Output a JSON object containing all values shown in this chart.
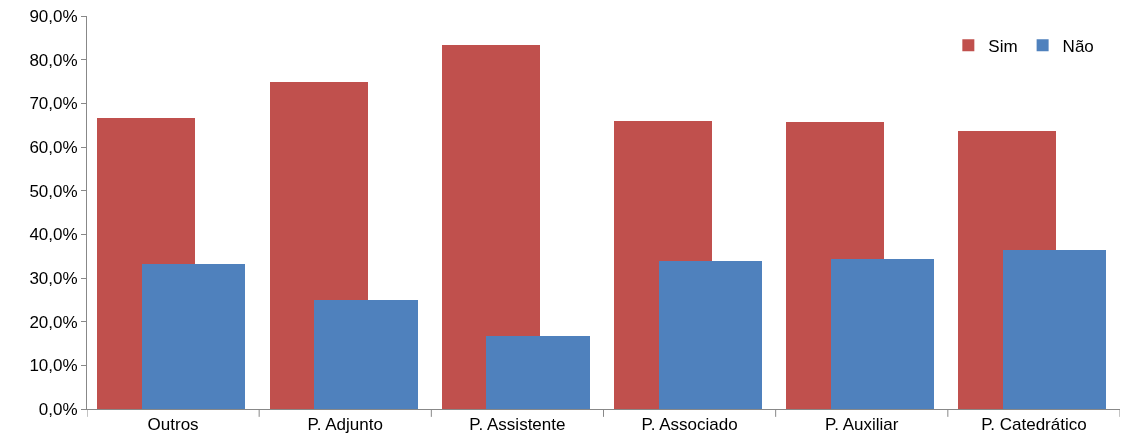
{
  "chart_data": {
    "type": "bar",
    "categories": [
      "Outros",
      "P. Adjunto",
      "P. Assistente",
      "P. Associado",
      "P. Auxiliar",
      "P. Catedrático"
    ],
    "series": [
      {
        "name": "Sim",
        "color": "#c0504d",
        "values": [
          66.7,
          75.0,
          83.3,
          66.0,
          65.7,
          63.6
        ]
      },
      {
        "name": "Não",
        "color": "#4f81bd",
        "values": [
          33.3,
          25.0,
          16.7,
          34.0,
          34.3,
          36.4
        ]
      }
    ],
    "ylim": [
      0,
      90
    ],
    "yticks": [
      {
        "value": 0,
        "label": "0,0%"
      },
      {
        "value": 10,
        "label": "10,0%"
      },
      {
        "value": 20,
        "label": "20,0%"
      },
      {
        "value": 30,
        "label": "30,0%"
      },
      {
        "value": 40,
        "label": "40,0%"
      },
      {
        "value": 50,
        "label": "50,0%"
      },
      {
        "value": 60,
        "label": "60,0%"
      },
      {
        "value": 70,
        "label": "70,0%"
      },
      {
        "value": 80,
        "label": "80,0%"
      },
      {
        "value": 90,
        "label": "90,0%"
      }
    ],
    "grid": false,
    "legend": "top right"
  }
}
